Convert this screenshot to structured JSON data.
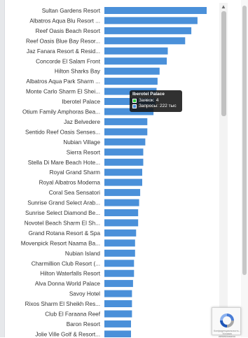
{
  "colors": {
    "bar": "#4a90d9",
    "label": "#333333",
    "tooltip_bg": "#141414",
    "swatch_bookings": "#2ecc40",
    "swatch_requests": "#4a90d9"
  },
  "tooltip": {
    "title": "Iberotel Palace",
    "bookings_label": "Заявок",
    "bookings_value": "4",
    "requests_label": "Запросы",
    "requests_value": "222 тыс"
  },
  "captcha": {
    "icon": "recaptcha-icon",
    "privacy_text": "Конфиденциальность - Условия использования"
  },
  "chart_data": {
    "type": "bar",
    "orientation": "horizontal",
    "categories": [
      "Sultan Gardens Resort",
      "Albatros Aqua Blu Resort ...",
      "Reef Oasis Beach Resort",
      "Reef Oasis Blue Bay Resor...",
      "Jaz Fanara Resort & Resid...",
      "Concorde El Salam Front",
      "Hilton Sharks Bay",
      "Albatros Aqua Park Sharm ...",
      "Monte Carlo Sharm El Shei...",
      "Iberotel Palace",
      "Otium Family Amphoras Bea...",
      "Jaz Belvedere",
      "Sentido Reef Oasis Senses...",
      "Nubian Village",
      "Sierra Resort",
      "Stella Di Mare Beach Hote...",
      "Royal Grand Sharm",
      "Royal Albatros Moderna",
      "Coral Sea Sensatori",
      "Sunrise Grand Select Arab...",
      "Sunrise Select Diamond Be...",
      "Novotel Beach Sharm El Sh...",
      "Grand Rotana Resort & Spa",
      "Movenpick Resort Naama Ba...",
      "Nubian Island",
      "Charmillion Club Resort (...",
      "Hilton Waterfalls Resort",
      "Alva Donna World Palace",
      "Savoy Hotel",
      "Rixos Sharm El Sheikh Res...",
      "Club El Faraana Reef",
      "Baron Resort",
      "Jolie Ville Golf & Resort..."
    ],
    "series": [
      {
        "name": "Запросы",
        "values": [
          100,
          91,
          85,
          79,
          62,
          61,
          54,
          52,
          51,
          50,
          48,
          42,
          42,
          40,
          38,
          38,
          37,
          37,
          35,
          34,
          33,
          33,
          31,
          30,
          30,
          29,
          29,
          28,
          27,
          27,
          27,
          26,
          26
        ]
      }
    ],
    "xlim": [
      0,
      100
    ],
    "grid": false,
    "legend": "none",
    "highlighted": "Iberotel Palace"
  }
}
